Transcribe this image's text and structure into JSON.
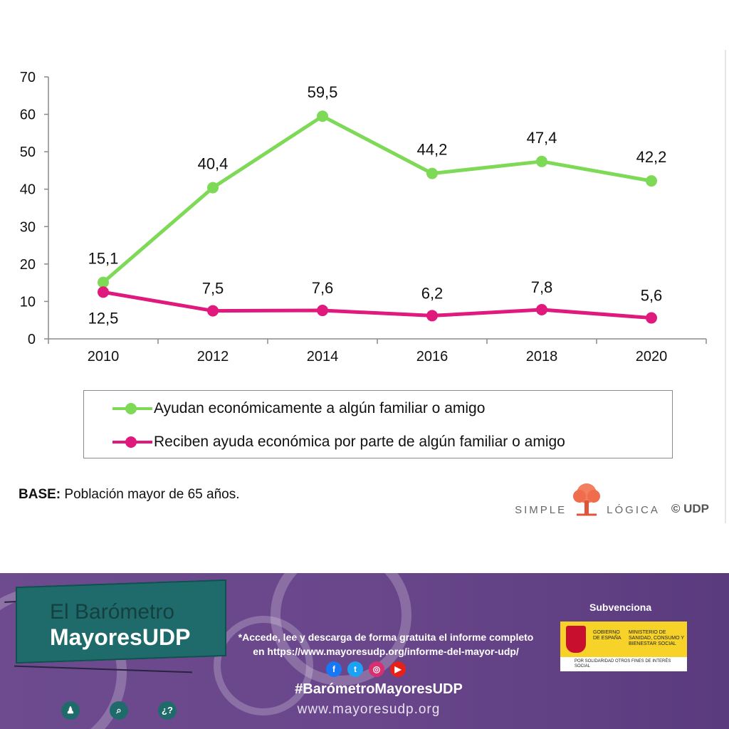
{
  "chart_data": {
    "type": "line",
    "categories": [
      "2010",
      "2012",
      "2014",
      "2016",
      "2018",
      "2020"
    ],
    "yticks": [
      "0",
      "10",
      "20",
      "30",
      "40",
      "50",
      "60",
      "70"
    ],
    "ylim": [
      0,
      70
    ],
    "grid": false,
    "legend_placement": "bottom",
    "series": [
      {
        "name": "Ayudan económicamente a algún familiar o amigo",
        "color": "#7ed957",
        "values": [
          15.1,
          40.4,
          59.5,
          44.2,
          47.4,
          42.2
        ],
        "labels": [
          "15,1",
          "40,4",
          "59,5",
          "44,2",
          "47,4",
          "42,2"
        ]
      },
      {
        "name": "Reciben ayuda económica por parte de algún familiar o amigo",
        "color": "#e0197d",
        "values": [
          12.5,
          7.5,
          7.6,
          6.2,
          7.8,
          5.6
        ],
        "labels": [
          "12,5",
          "7,5",
          "7,6",
          "6,2",
          "7,8",
          "5,6"
        ]
      }
    ]
  },
  "note": {
    "prefix": "BASE:",
    "text": " Población mayor de 65 años."
  },
  "brand": {
    "simple": "SIMPLE",
    "logica": "LÓGICA",
    "udp": "© UDP"
  },
  "footer": {
    "title_line1": "El Barómetro",
    "title_line2": "MayoresUDP",
    "access_line1": "*Accede, lee y descarga de forma gratuita el informe completo",
    "access_line2": "en https://www.mayoresudp.org/informe-del-mayor-udp/",
    "hashtag": "#BarómetroMayoresUDP",
    "website": "www.mayoresudp.org",
    "subvenciona": "Subvenciona",
    "gov_label": "GOBIERNO DE ESPAÑA",
    "ministry": "MINISTERIO DE SANIDAD, CONSUMO Y BIENESTAR SOCIAL",
    "solidaridad": "POR SOLIDARIDAD OTROS FINES DE INTERÉS SOCIAL",
    "buttons": [
      "♟",
      "⌕",
      "¿?"
    ],
    "social": [
      {
        "icon": "facebook-icon",
        "glyph": "f",
        "color": "#1877f2"
      },
      {
        "icon": "twitter-icon",
        "glyph": "t",
        "color": "#1da1f2"
      },
      {
        "icon": "instagram-icon",
        "glyph": "◎",
        "color": "#d6306f"
      },
      {
        "icon": "youtube-icon",
        "glyph": "▶",
        "color": "#e62117"
      }
    ]
  }
}
